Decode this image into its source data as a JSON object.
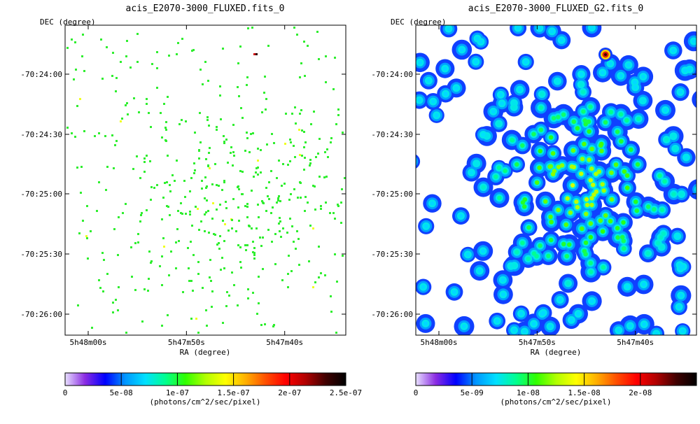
{
  "chart_data": [
    {
      "type": "heatmap",
      "title": "acis_E2070-3000_FLUXED.fits_0",
      "xlabel": "RA (degree)",
      "ylabel": "DEC (degree)",
      "x_ticks": [
        "5h48m00s",
        "5h47m50s",
        "5h47m40s"
      ],
      "y_ticks": [
        "-70:24:00",
        "-70:24:30",
        "-70:25:00",
        "-70:25:30",
        "-70:26:00"
      ],
      "colorbar": {
        "label": "(photons/cm^2/sec/pixel)",
        "tick_labels": [
          "0",
          "5e-08",
          "1e-07",
          "1.5e-07",
          "2e-07",
          "2.5e-07"
        ],
        "range": [
          0,
          2.5e-07
        ]
      },
      "image_style": "sparse-pixels",
      "bright_source_value": 2.4e-07
    },
    {
      "type": "heatmap",
      "title": "acis_E2070-3000_FLUXED_G2.fits_0",
      "xlabel": "RA (degree)",
      "ylabel": "DEC (degree)",
      "x_ticks": [
        "5h48m00s",
        "5h47m50s",
        "5h47m40s"
      ],
      "y_ticks": [
        "-70:24:00",
        "-70:24:30",
        "-70:25:00",
        "-70:25:30",
        "-70:26:00"
      ],
      "colorbar": {
        "label": "(photons/cm^2/sec/pixel)",
        "tick_labels": [
          "0",
          "5e-09",
          "1e-08",
          "1.5e-08",
          "2e-08"
        ],
        "range": [
          0,
          2.5e-08
        ]
      },
      "image_style": "gaussian-smoothed",
      "bright_source_value": 2.4e-08
    }
  ],
  "colormap": [
    "#ffffff",
    "#8a2be2",
    "#0000ff",
    "#0096ff",
    "#00e0ff",
    "#00ff90",
    "#30ff00",
    "#b0ff00",
    "#ffff00",
    "#ffb000",
    "#ff5000",
    "#ff0000",
    "#b00000",
    "#400000",
    "#000000"
  ]
}
